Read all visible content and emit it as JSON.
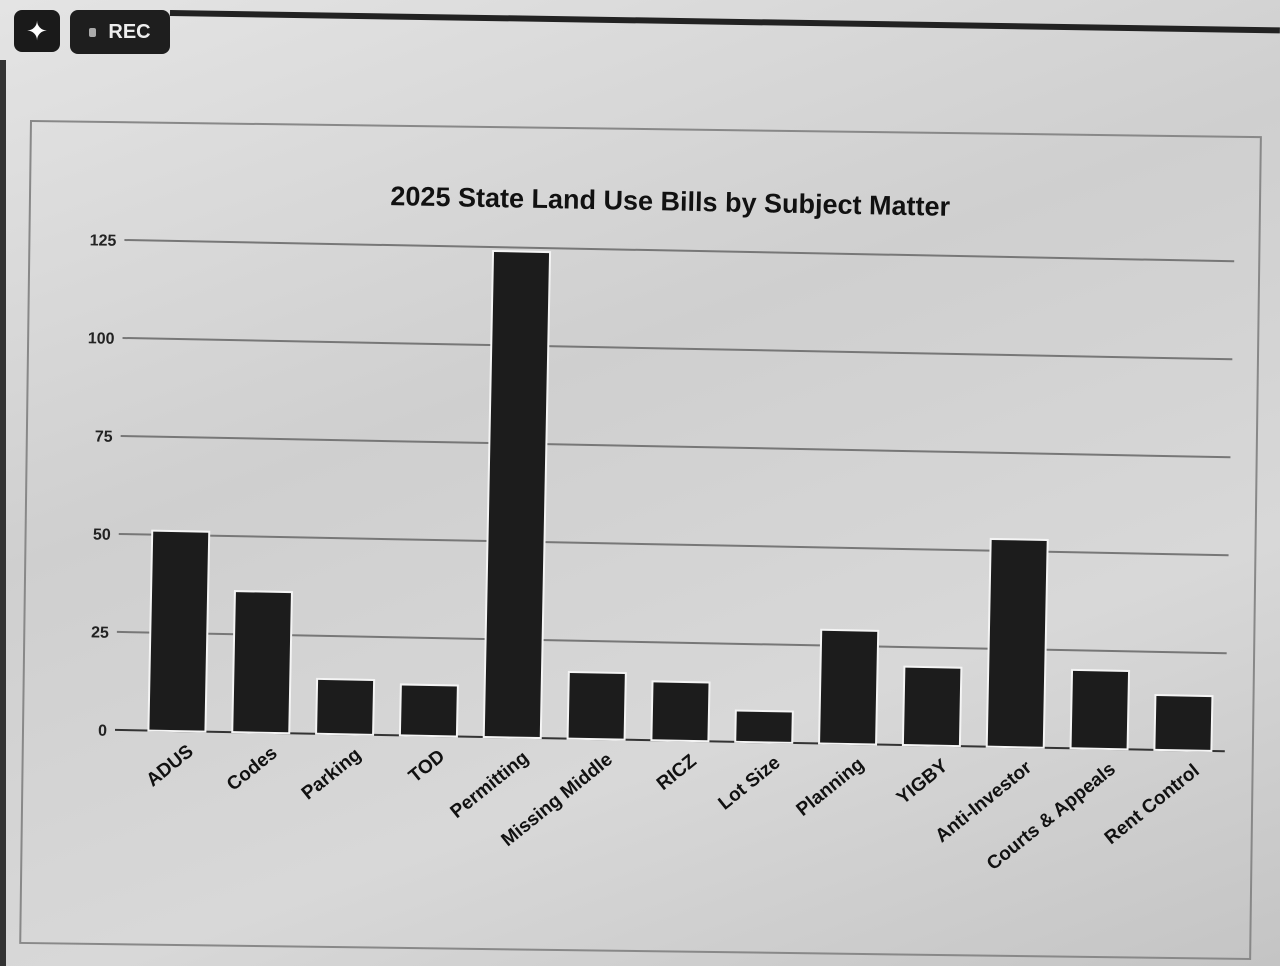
{
  "toolbar": {
    "ai_icon": "sparkle-icon",
    "rec_label": "REC"
  },
  "chart_data": {
    "type": "bar",
    "title": "2025 State Land Use Bills by Subject Matter",
    "xlabel": "",
    "ylabel": "",
    "categories": [
      "ADUS",
      "Codes",
      "Parking",
      "TOD",
      "Permitting",
      "Missing Middle",
      "RICZ",
      "Lot Size",
      "Planning",
      "YIGBY",
      "Anti-Investor",
      "Courts & Appeals",
      "Rent Control"
    ],
    "values": [
      51,
      36,
      14,
      13,
      124,
      17,
      15,
      8,
      29,
      20,
      53,
      20,
      14
    ],
    "ylim": [
      0,
      125
    ],
    "yticks": [
      0,
      25,
      50,
      75,
      100,
      125
    ],
    "grid": true,
    "legend": "none",
    "bar_color": "#1c1c1c"
  }
}
